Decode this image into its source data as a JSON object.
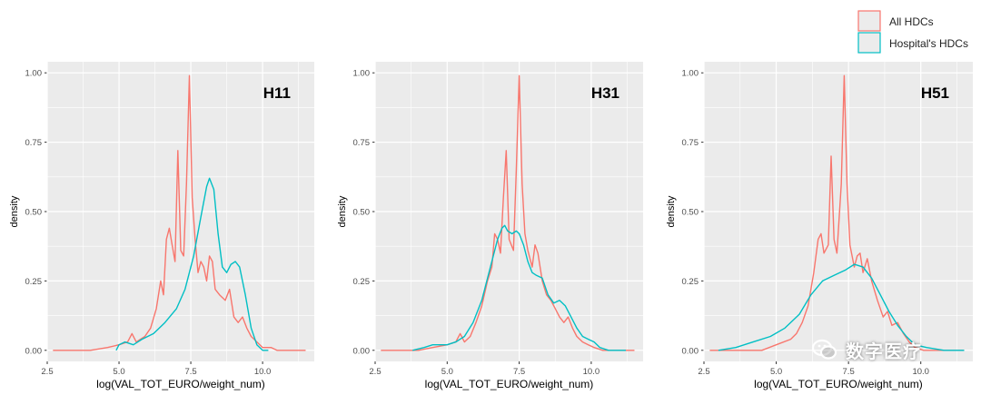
{
  "watermark": {
    "text": "数字医疗",
    "icon": "wechat-icon"
  },
  "legend": {
    "position": "top-right",
    "entries": [
      {
        "label": "All HDCs",
        "color": "#F8766D"
      },
      {
        "label": "Hospital's HDCs",
        "color": "#00BFC4"
      }
    ]
  },
  "chart_data": [
    {
      "type": "line",
      "title": "H11",
      "xlabel": "log(VAL_TOT_EURO/weight_num)",
      "ylabel": "density",
      "xlim": [
        2.5,
        11.8
      ],
      "ylim": [
        -0.04,
        1.04
      ],
      "xticks": [
        2.5,
        5.0,
        7.5,
        10.0
      ],
      "xtick_labels": [
        "2.5",
        "5.0",
        "7.5",
        "10.0"
      ],
      "yticks": [
        0,
        0.25,
        0.5,
        0.75,
        1.0
      ],
      "ytick_labels": [
        "0.00",
        "0.25",
        "0.50",
        "0.75",
        "1.00"
      ],
      "grid": true,
      "series": [
        {
          "name": "All HDCs",
          "color": "#F8766D",
          "points": [
            [
              2.7,
              0
            ],
            [
              4.0,
              0
            ],
            [
              4.6,
              0.01
            ],
            [
              5.0,
              0.02
            ],
            [
              5.3,
              0.03
            ],
            [
              5.45,
              0.06
            ],
            [
              5.6,
              0.03
            ],
            [
              5.9,
              0.05
            ],
            [
              6.1,
              0.08
            ],
            [
              6.3,
              0.15
            ],
            [
              6.45,
              0.25
            ],
            [
              6.55,
              0.2
            ],
            [
              6.65,
              0.4
            ],
            [
              6.75,
              0.44
            ],
            [
              6.85,
              0.38
            ],
            [
              6.95,
              0.32
            ],
            [
              7.05,
              0.72
            ],
            [
              7.15,
              0.36
            ],
            [
              7.25,
              0.34
            ],
            [
              7.35,
              0.6
            ],
            [
              7.45,
              0.99
            ],
            [
              7.55,
              0.55
            ],
            [
              7.65,
              0.4
            ],
            [
              7.75,
              0.28
            ],
            [
              7.85,
              0.32
            ],
            [
              7.95,
              0.3
            ],
            [
              8.05,
              0.25
            ],
            [
              8.15,
              0.34
            ],
            [
              8.25,
              0.32
            ],
            [
              8.35,
              0.22
            ],
            [
              8.5,
              0.2
            ],
            [
              8.7,
              0.18
            ],
            [
              8.85,
              0.22
            ],
            [
              9.0,
              0.12
            ],
            [
              9.15,
              0.1
            ],
            [
              9.3,
              0.12
            ],
            [
              9.45,
              0.08
            ],
            [
              9.6,
              0.05
            ],
            [
              9.8,
              0.03
            ],
            [
              10.0,
              0.01
            ],
            [
              10.3,
              0.01
            ],
            [
              10.5,
              0
            ],
            [
              11.5,
              0
            ]
          ]
        },
        {
          "name": "Hospital's HDCs",
          "color": "#00BFC4",
          "points": [
            [
              4.9,
              0
            ],
            [
              5.0,
              0.02
            ],
            [
              5.2,
              0.03
            ],
            [
              5.5,
              0.02
            ],
            [
              5.8,
              0.04
            ],
            [
              6.2,
              0.06
            ],
            [
              6.6,
              0.1
            ],
            [
              7.0,
              0.15
            ],
            [
              7.3,
              0.22
            ],
            [
              7.6,
              0.34
            ],
            [
              7.85,
              0.48
            ],
            [
              8.05,
              0.59
            ],
            [
              8.15,
              0.62
            ],
            [
              8.3,
              0.58
            ],
            [
              8.45,
              0.42
            ],
            [
              8.6,
              0.3
            ],
            [
              8.75,
              0.28
            ],
            [
              8.9,
              0.31
            ],
            [
              9.05,
              0.32
            ],
            [
              9.2,
              0.3
            ],
            [
              9.4,
              0.2
            ],
            [
              9.6,
              0.08
            ],
            [
              9.8,
              0.02
            ],
            [
              10.0,
              0.0
            ],
            [
              10.2,
              0
            ]
          ]
        }
      ]
    },
    {
      "type": "line",
      "title": "H31",
      "xlabel": "log(VAL_TOT_EURO/weight_num)",
      "ylabel": "density",
      "xlim": [
        2.5,
        11.8
      ],
      "ylim": [
        -0.04,
        1.04
      ],
      "xticks": [
        2.5,
        5.0,
        7.5,
        10.0
      ],
      "xtick_labels": [
        "2.5",
        "5.0",
        "7.5",
        "10.0"
      ],
      "yticks": [
        0,
        0.25,
        0.5,
        0.75,
        1.0
      ],
      "ytick_labels": [
        "0.00",
        "0.25",
        "0.50",
        "0.75",
        "1.00"
      ],
      "grid": true,
      "series": [
        {
          "name": "All HDCs",
          "color": "#F8766D",
          "points": [
            [
              2.7,
              0
            ],
            [
              4.0,
              0
            ],
            [
              4.5,
              0.01
            ],
            [
              5.0,
              0.02
            ],
            [
              5.3,
              0.03
            ],
            [
              5.45,
              0.06
            ],
            [
              5.6,
              0.03
            ],
            [
              5.8,
              0.05
            ],
            [
              6.0,
              0.1
            ],
            [
              6.2,
              0.16
            ],
            [
              6.4,
              0.25
            ],
            [
              6.55,
              0.3
            ],
            [
              6.65,
              0.42
            ],
            [
              6.75,
              0.4
            ],
            [
              6.85,
              0.35
            ],
            [
              6.95,
              0.55
            ],
            [
              7.05,
              0.72
            ],
            [
              7.15,
              0.4
            ],
            [
              7.3,
              0.36
            ],
            [
              7.4,
              0.65
            ],
            [
              7.5,
              0.99
            ],
            [
              7.6,
              0.6
            ],
            [
              7.7,
              0.42
            ],
            [
              7.8,
              0.36
            ],
            [
              7.95,
              0.3
            ],
            [
              8.05,
              0.38
            ],
            [
              8.15,
              0.35
            ],
            [
              8.3,
              0.25
            ],
            [
              8.45,
              0.2
            ],
            [
              8.6,
              0.18
            ],
            [
              8.75,
              0.15
            ],
            [
              8.9,
              0.12
            ],
            [
              9.05,
              0.1
            ],
            [
              9.2,
              0.12
            ],
            [
              9.35,
              0.08
            ],
            [
              9.5,
              0.05
            ],
            [
              9.7,
              0.03
            ],
            [
              9.9,
              0.02
            ],
            [
              10.1,
              0.01
            ],
            [
              10.4,
              0
            ],
            [
              11.5,
              0
            ]
          ]
        },
        {
          "name": "Hospital's HDCs",
          "color": "#00BFC4",
          "points": [
            [
              3.8,
              0
            ],
            [
              4.2,
              0.01
            ],
            [
              4.5,
              0.02
            ],
            [
              5.0,
              0.02
            ],
            [
              5.3,
              0.03
            ],
            [
              5.6,
              0.05
            ],
            [
              5.9,
              0.1
            ],
            [
              6.2,
              0.18
            ],
            [
              6.5,
              0.3
            ],
            [
              6.75,
              0.4
            ],
            [
              6.9,
              0.44
            ],
            [
              7.0,
              0.45
            ],
            [
              7.1,
              0.43
            ],
            [
              7.25,
              0.42
            ],
            [
              7.4,
              0.43
            ],
            [
              7.5,
              0.42
            ],
            [
              7.65,
              0.38
            ],
            [
              7.8,
              0.32
            ],
            [
              7.95,
              0.28
            ],
            [
              8.1,
              0.27
            ],
            [
              8.3,
              0.26
            ],
            [
              8.5,
              0.2
            ],
            [
              8.7,
              0.17
            ],
            [
              8.9,
              0.18
            ],
            [
              9.1,
              0.16
            ],
            [
              9.3,
              0.12
            ],
            [
              9.5,
              0.08
            ],
            [
              9.7,
              0.05
            ],
            [
              9.9,
              0.04
            ],
            [
              10.1,
              0.03
            ],
            [
              10.3,
              0.01
            ],
            [
              10.6,
              0
            ],
            [
              11.2,
              0
            ]
          ]
        }
      ]
    },
    {
      "type": "line",
      "title": "H51",
      "xlabel": "log(VAL_TOT_EURO/weight_num)",
      "ylabel": "density",
      "xlim": [
        2.5,
        11.8
      ],
      "ylim": [
        -0.04,
        1.04
      ],
      "xticks": [
        2.5,
        5.0,
        7.5,
        10.0
      ],
      "xtick_labels": [
        "2.5",
        "5.0",
        "7.5",
        "10.0"
      ],
      "yticks": [
        0,
        0.25,
        0.5,
        0.75,
        1.0
      ],
      "ytick_labels": [
        "0.00",
        "0.25",
        "0.50",
        "0.75",
        "1.00"
      ],
      "grid": true,
      "series": [
        {
          "name": "All HDCs",
          "color": "#F8766D",
          "points": [
            [
              2.7,
              0
            ],
            [
              4.5,
              0
            ],
            [
              5.0,
              0.02
            ],
            [
              5.5,
              0.04
            ],
            [
              5.7,
              0.06
            ],
            [
              5.9,
              0.1
            ],
            [
              6.1,
              0.16
            ],
            [
              6.3,
              0.28
            ],
            [
              6.45,
              0.4
            ],
            [
              6.55,
              0.42
            ],
            [
              6.65,
              0.35
            ],
            [
              6.8,
              0.38
            ],
            [
              6.9,
              0.7
            ],
            [
              7.0,
              0.4
            ],
            [
              7.1,
              0.35
            ],
            [
              7.25,
              0.6
            ],
            [
              7.35,
              0.99
            ],
            [
              7.45,
              0.6
            ],
            [
              7.55,
              0.38
            ],
            [
              7.7,
              0.3
            ],
            [
              7.8,
              0.34
            ],
            [
              7.9,
              0.35
            ],
            [
              8.0,
              0.28
            ],
            [
              8.15,
              0.33
            ],
            [
              8.3,
              0.25
            ],
            [
              8.5,
              0.18
            ],
            [
              8.7,
              0.12
            ],
            [
              8.85,
              0.14
            ],
            [
              9.0,
              0.09
            ],
            [
              9.2,
              0.1
            ],
            [
              9.4,
              0.06
            ],
            [
              9.6,
              0.03
            ],
            [
              9.8,
              0.01
            ],
            [
              10.1,
              0
            ],
            [
              11.5,
              0
            ]
          ]
        },
        {
          "name": "Hospital's HDCs",
          "color": "#00BFC4",
          "points": [
            [
              3.0,
              0
            ],
            [
              3.6,
              0.01
            ],
            [
              4.2,
              0.03
            ],
            [
              4.8,
              0.05
            ],
            [
              5.3,
              0.08
            ],
            [
              5.8,
              0.13
            ],
            [
              6.2,
              0.2
            ],
            [
              6.6,
              0.25
            ],
            [
              7.0,
              0.27
            ],
            [
              7.4,
              0.29
            ],
            [
              7.7,
              0.31
            ],
            [
              8.0,
              0.3
            ],
            [
              8.3,
              0.26
            ],
            [
              8.6,
              0.2
            ],
            [
              8.9,
              0.14
            ],
            [
              9.2,
              0.09
            ],
            [
              9.5,
              0.05
            ],
            [
              9.8,
              0.02
            ],
            [
              10.2,
              0.01
            ],
            [
              10.8,
              0
            ],
            [
              11.5,
              0
            ]
          ]
        }
      ]
    }
  ]
}
